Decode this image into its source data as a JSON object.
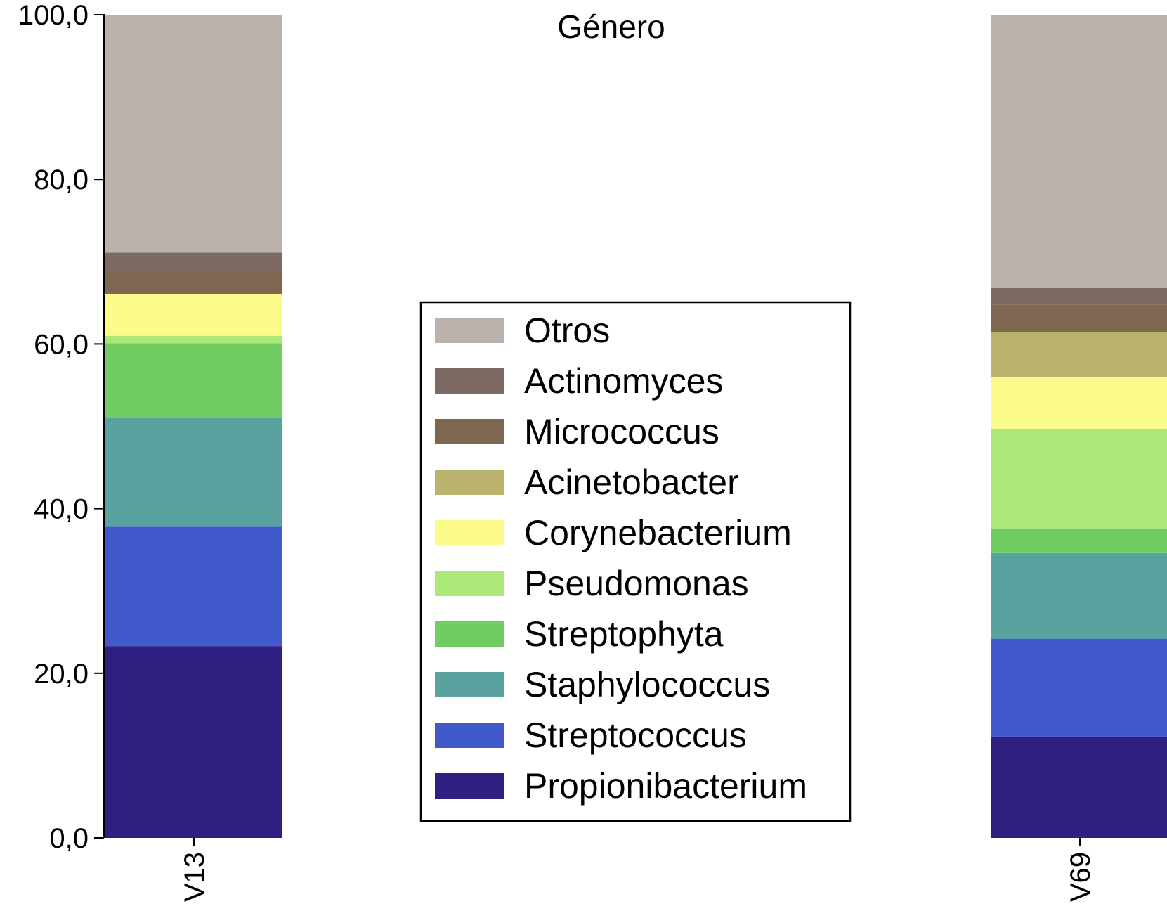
{
  "chart_data": {
    "type": "bar",
    "stacked": true,
    "title": "Género",
    "xlabel": "",
    "ylabel": "",
    "ylim": [
      0,
      100
    ],
    "yticks": [
      "0,0",
      "20,0",
      "40,0",
      "60,0",
      "80,0",
      "100,0"
    ],
    "grid": false,
    "legend_position": "center",
    "categories": [
      "V13",
      "V69"
    ],
    "series": [
      {
        "name": "Propionibacterium",
        "color": "#2e1f80",
        "values": [
          23.3,
          12.3
        ]
      },
      {
        "name": "Streptococcus",
        "color": "#405acc",
        "values": [
          14.5,
          11.9
        ]
      },
      {
        "name": "Staphylococcus",
        "color": "#5aa2a0",
        "values": [
          13.3,
          10.4
        ]
      },
      {
        "name": "Streptophyta",
        "color": "#6fcd62",
        "values": [
          9.0,
          3.0
        ]
      },
      {
        "name": "Pseudomonas",
        "color": "#abe878",
        "values": [
          0.9,
          12.1
        ]
      },
      {
        "name": "Corynebacterium",
        "color": "#fbfb8c",
        "values": [
          5.1,
          6.3
        ]
      },
      {
        "name": "Acinetobacter",
        "color": "#bab36d",
        "values": [
          0.0,
          5.4
        ]
      },
      {
        "name": "Micrococcus",
        "color": "#7e6650",
        "values": [
          2.8,
          3.4
        ]
      },
      {
        "name": "Actinomyces",
        "color": "#7e6a64",
        "values": [
          2.2,
          2.0
        ]
      },
      {
        "name": "Otros",
        "color": "#bbb1ad",
        "values": [
          28.9,
          33.2
        ]
      }
    ],
    "legend_order": [
      "Otros",
      "Actinomyces",
      "Micrococcus",
      "Acinetobacter",
      "Corynebacterium",
      "Pseudomonas",
      "Streptophyta",
      "Staphylococcus",
      "Streptococcus",
      "Propionibacterium"
    ]
  }
}
